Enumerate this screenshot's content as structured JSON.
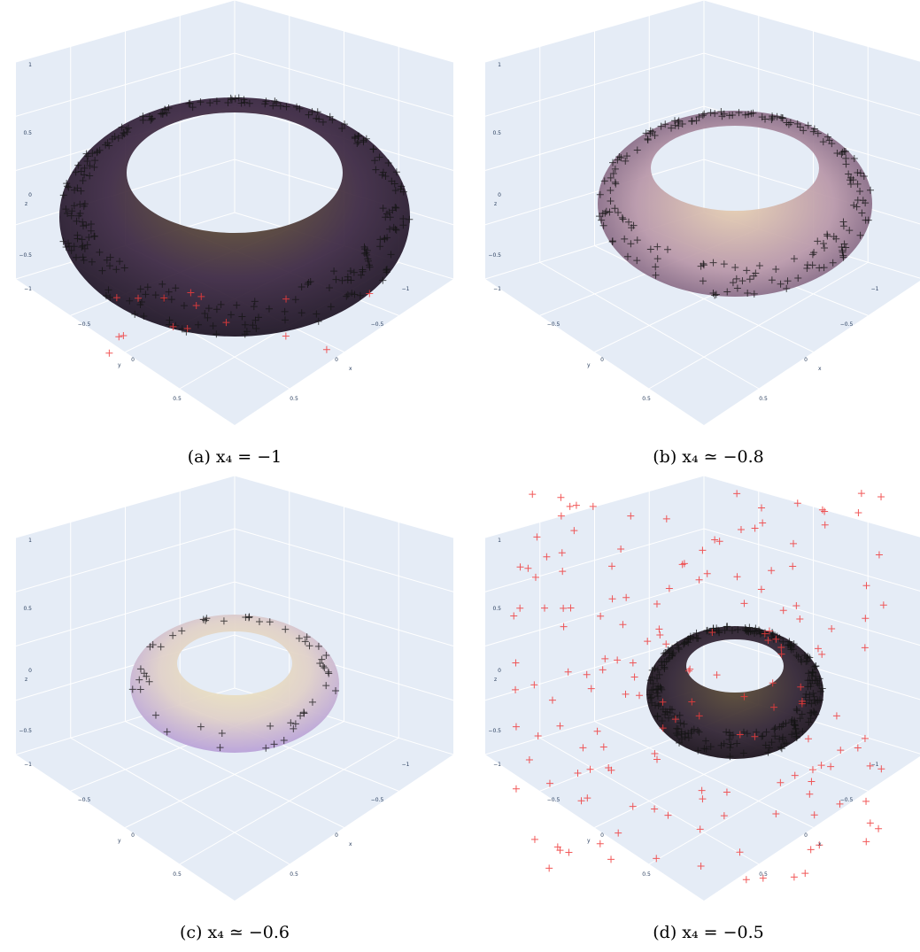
{
  "panels": [
    {
      "caption": "(a) x₄ = −1",
      "axes": {
        "z_title": "z",
        "z_ticks": [
          "1",
          "0.5",
          "0",
          "−0.5",
          "−1"
        ],
        "y_title": "y",
        "y_ticks": [
          "−0.5",
          "0",
          "0.5"
        ],
        "x_title": "x",
        "x_ticks": [
          "−1",
          "−0.5",
          "0",
          "0.5"
        ]
      }
    },
    {
      "caption": "(b) x₄ ≃ −0.8",
      "axes": {
        "z_title": "z",
        "z_ticks": [
          "1",
          "0.5",
          "0",
          "−0.5",
          "−1"
        ],
        "y_title": "y",
        "y_ticks": [
          "−0.5",
          "0",
          "0.5"
        ],
        "x_title": "x",
        "x_ticks": [
          "−1",
          "−0.5",
          "0",
          "0.5"
        ]
      }
    },
    {
      "caption": "(c) x₄ ≃ −0.6",
      "axes": {
        "z_title": "z",
        "z_ticks": [
          "1",
          "0.5",
          "0",
          "−0.5",
          "−1"
        ],
        "y_title": "y",
        "y_ticks": [
          "−0.5",
          "0",
          "0.5"
        ],
        "x_title": "x",
        "x_ticks": [
          "−1",
          "−0.5",
          "0",
          "0.5"
        ]
      }
    },
    {
      "caption": "(d) x₄ = −0.5",
      "axes": {
        "z_title": "z",
        "z_ticks": [
          "1",
          "0.5",
          "0",
          "−0.5",
          "−1"
        ],
        "y_title": "y",
        "y_ticks": [
          "−0.5",
          "0",
          "0.5"
        ],
        "x_title": "x",
        "x_ticks": [
          "−1",
          "−0.5",
          "0",
          "0.5"
        ]
      }
    }
  ]
}
